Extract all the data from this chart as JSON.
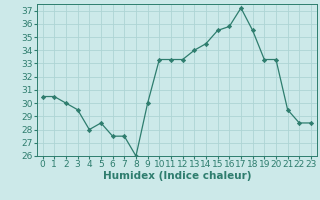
{
  "x": [
    0,
    1,
    2,
    3,
    4,
    5,
    6,
    7,
    8,
    9,
    10,
    11,
    12,
    13,
    14,
    15,
    16,
    17,
    18,
    19,
    20,
    21,
    22,
    23
  ],
  "y": [
    30.5,
    30.5,
    30.0,
    29.5,
    28.0,
    28.5,
    27.5,
    27.5,
    26.0,
    30.0,
    33.3,
    33.3,
    33.3,
    34.0,
    34.5,
    35.5,
    35.8,
    37.2,
    35.5,
    33.3,
    33.3,
    29.5,
    28.5,
    28.5
  ],
  "line_color": "#2e7d6e",
  "marker": "D",
  "marker_size": 2.2,
  "background_color": "#cce9e9",
  "grid_color": "#aed4d4",
  "xlabel": "Humidex (Indice chaleur)",
  "xlim": [
    -0.5,
    23.5
  ],
  "ylim": [
    26,
    37.5
  ],
  "yticks": [
    26,
    27,
    28,
    29,
    30,
    31,
    32,
    33,
    34,
    35,
    36,
    37
  ],
  "xticks": [
    0,
    1,
    2,
    3,
    4,
    5,
    6,
    7,
    8,
    9,
    10,
    11,
    12,
    13,
    14,
    15,
    16,
    17,
    18,
    19,
    20,
    21,
    22,
    23
  ],
  "tick_color": "#2e7d6e",
  "label_color": "#2e7d6e",
  "font_size": 6.5,
  "xlabel_fontsize": 7.5,
  "linewidth": 0.9
}
